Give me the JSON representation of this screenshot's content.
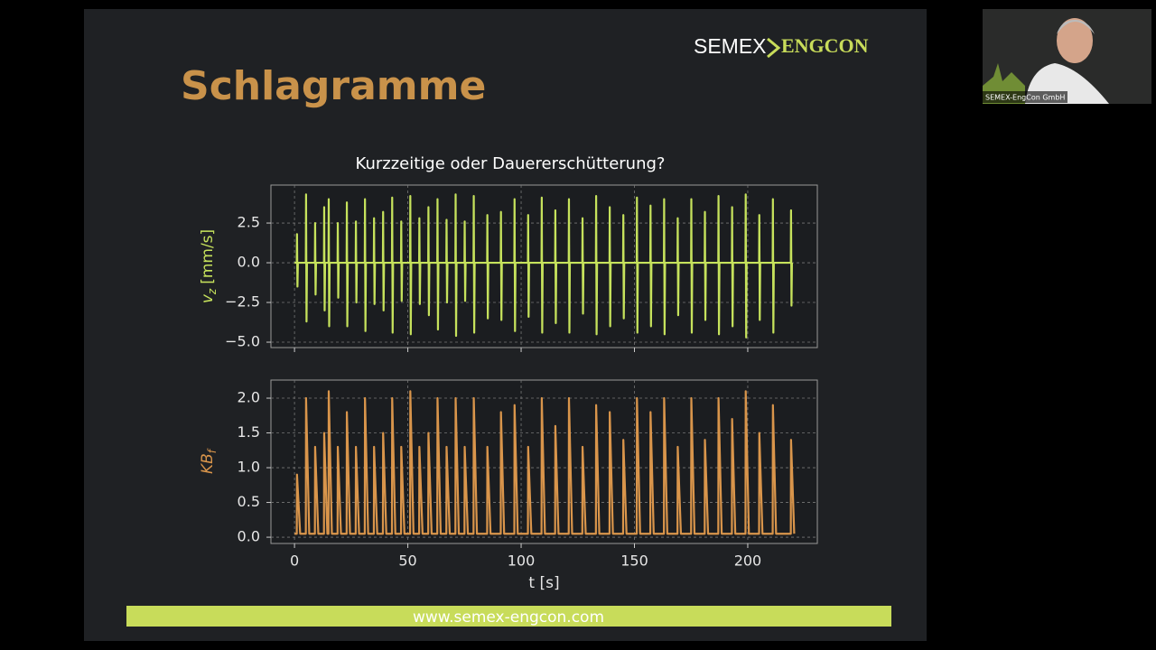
{
  "slide": {
    "title": "Schlagramme",
    "logo_left": "SEMEX",
    "logo_right": "ENGCON",
    "footer": "www.semex-engcon.com"
  },
  "video": {
    "caption": "SEMEX-EngCon GmbH"
  },
  "chart_data": [
    {
      "type": "line",
      "title": "Kurzzeitige oder Dauererschütterung?",
      "ylabel_symbol": "v",
      "ylabel_subscript": "z",
      "ylabel_unit": "[mm/s]",
      "xlim": [
        -10.4,
        230.7
      ],
      "xticks": [
        0,
        50,
        100,
        150,
        200
      ],
      "show_xtick_labels": false,
      "ylim": [
        -5.34,
        4.89
      ],
      "yticks": [
        {
          "value": -5,
          "label": "−5.0"
        },
        {
          "value": -2.5,
          "label": "−2.5"
        },
        {
          "value": 0,
          "label": "0.0"
        },
        {
          "value": 2.5,
          "label": "2.5"
        }
      ],
      "grid": true,
      "x": [
        0,
        1,
        1.1,
        1.3,
        1.5,
        5,
        5.1,
        5.3,
        5.5,
        9,
        9.1,
        9.3,
        9.5,
        13,
        13.1,
        13.3,
        13.5,
        15,
        15.1,
        15.3,
        15.5,
        19,
        19.1,
        19.3,
        19.5,
        23,
        23.1,
        23.3,
        23.5,
        27,
        27.1,
        27.3,
        27.5,
        31,
        31.1,
        31.3,
        31.5,
        35,
        35.1,
        35.3,
        35.5,
        39,
        39.1,
        39.3,
        39.5,
        43,
        43.1,
        43.3,
        43.5,
        47,
        47.1,
        47.3,
        47.5,
        51,
        51.1,
        51.3,
        51.5,
        55,
        55.1,
        55.3,
        55.5,
        59,
        59.1,
        59.3,
        59.5,
        63,
        63.1,
        63.3,
        63.5,
        67,
        67.1,
        67.3,
        67.5,
        71,
        71.1,
        71.3,
        71.5,
        75,
        75.1,
        75.3,
        75.5,
        79,
        79.1,
        79.3,
        79.5,
        85,
        85.1,
        85.3,
        85.5,
        91,
        91.1,
        91.3,
        91.5,
        97,
        97.1,
        97.3,
        97.5,
        103,
        103.1,
        103.3,
        103.5,
        109,
        109.1,
        109.3,
        109.5,
        115,
        115.1,
        115.3,
        115.5,
        121,
        121.1,
        121.3,
        121.5,
        127,
        127.1,
        127.3,
        127.5,
        133,
        133.1,
        133.3,
        133.5,
        139,
        139.1,
        139.3,
        139.5,
        145,
        145.1,
        145.3,
        145.5,
        151,
        151.1,
        151.3,
        151.5,
        157,
        157.1,
        157.3,
        157.5,
        163,
        163.1,
        163.3,
        163.5,
        169,
        169.1,
        169.3,
        169.5,
        175,
        175.1,
        175.3,
        175.5,
        181,
        181.1,
        181.3,
        181.5,
        187,
        187.1,
        187.3,
        187.5,
        193,
        193.1,
        193.3,
        193.5,
        199,
        199.1,
        199.3,
        199.5,
        205,
        205.1,
        205.3,
        205.5,
        211,
        211.1,
        211.3,
        211.5,
        219,
        219.1,
        219.3,
        219.5
      ],
      "series": [
        {
          "color": "#c6e25c",
          "values": [
            0,
            0,
            1.8,
            -1.5,
            0,
            0,
            4.3,
            -3.7,
            0,
            0,
            2.5,
            -2.0,
            0,
            0,
            3.5,
            -3.0,
            0,
            0,
            4.0,
            -4.0,
            0,
            0,
            2.5,
            -2.2,
            0,
            0,
            3.8,
            -4.0,
            0,
            0,
            2.6,
            -2.5,
            0,
            0,
            4.0,
            -4.3,
            0,
            0,
            2.8,
            -2.6,
            0,
            0,
            3.2,
            -3.0,
            0,
            0,
            4.1,
            -4.4,
            0,
            0,
            2.6,
            -2.4,
            0,
            0,
            4.2,
            -4.5,
            0,
            0,
            2.8,
            -2.6,
            0,
            0,
            3.5,
            -3.3,
            0,
            0,
            4.0,
            -4.2,
            0,
            0,
            2.7,
            -2.5,
            0,
            0,
            4.3,
            -4.6,
            0,
            0,
            2.6,
            -2.4,
            0,
            0,
            4.2,
            -4.4,
            0,
            0,
            3.0,
            -3.5,
            0,
            0,
            3.2,
            -3.6,
            0,
            0,
            4.0,
            -4.3,
            0,
            0,
            3.0,
            -3.4,
            0,
            0,
            4.1,
            -4.4,
            0,
            0,
            3.3,
            -3.8,
            0,
            0,
            4.0,
            -4.4,
            0,
            0,
            2.8,
            -3.2,
            0,
            0,
            4.2,
            -4.5,
            0,
            0,
            3.5,
            -4.0,
            0,
            0,
            3.0,
            -3.5,
            0,
            0,
            4.1,
            -4.4,
            0,
            0,
            3.6,
            -4.0,
            0,
            0,
            4.0,
            -4.5,
            0,
            0,
            2.8,
            -3.3,
            0,
            0,
            4.0,
            -4.4,
            0,
            0,
            3.2,
            -3.6,
            0,
            0,
            4.2,
            -4.5,
            0,
            0,
            3.5,
            -4.0,
            0,
            0,
            4.3,
            -4.7,
            0,
            0,
            3.0,
            -3.6,
            0,
            0,
            4.0,
            -4.4,
            0,
            0,
            3.3,
            -2.7,
            0
          ]
        }
      ]
    },
    {
      "type": "line",
      "ylabel_symbol": "KB",
      "ylabel_subscript": "f",
      "xlabel": "t [s]",
      "xlim": [
        -10.4,
        230.7
      ],
      "xticks": [
        0,
        50,
        100,
        150,
        200
      ],
      "show_xtick_labels": true,
      "ylim": [
        -0.09,
        2.26
      ],
      "yticks": [
        {
          "value": 0,
          "label": "0.0"
        },
        {
          "value": 0.5,
          "label": "0.5"
        },
        {
          "value": 1,
          "label": "1.0"
        },
        {
          "value": 1.5,
          "label": "1.5"
        },
        {
          "value": 2,
          "label": "2.0"
        }
      ],
      "grid": true,
      "x": [
        0,
        1,
        1.1,
        2.5,
        5,
        5.1,
        6.5,
        9,
        9.1,
        10.5,
        13,
        13.1,
        14.5,
        15,
        15.1,
        16.5,
        19,
        19.1,
        20.5,
        23,
        23.1,
        24.5,
        27,
        27.1,
        28.5,
        31,
        31.1,
        32.5,
        35,
        35.1,
        36.5,
        39,
        39.1,
        40.5,
        43,
        43.1,
        44.5,
        47,
        47.1,
        48.5,
        51,
        51.1,
        52.5,
        55,
        55.1,
        56.5,
        59,
        59.1,
        60.5,
        63,
        63.1,
        64.5,
        67,
        67.1,
        68.5,
        71,
        71.1,
        72.5,
        75,
        75.1,
        76.5,
        79,
        79.1,
        80.5,
        85,
        85.1,
        86.5,
        91,
        91.1,
        92.5,
        97,
        97.1,
        98.5,
        103,
        103.1,
        104.5,
        109,
        109.1,
        110.5,
        115,
        115.1,
        116.5,
        121,
        121.1,
        122.5,
        127,
        127.1,
        128.5,
        133,
        133.1,
        134.5,
        139,
        139.1,
        140.5,
        145,
        145.1,
        146.5,
        151,
        151.1,
        152.5,
        157,
        157.1,
        158.5,
        163,
        163.1,
        164.5,
        169,
        169.1,
        170.5,
        175,
        175.1,
        176.5,
        181,
        181.1,
        182.5,
        187,
        187.1,
        188.5,
        193,
        193.1,
        194.5,
        199,
        199.1,
        200.5,
        205,
        205.1,
        206.5,
        211,
        211.1,
        212.5,
        219,
        219.1,
        220.5
      ],
      "series": [
        {
          "color": "#d9954b",
          "values": [
            0.05,
            0.05,
            0.9,
            0.05,
            0.05,
            2.0,
            0.05,
            0.05,
            1.3,
            0.05,
            0.05,
            1.5,
            0.05,
            0.05,
            2.1,
            0.05,
            0.05,
            1.3,
            0.05,
            0.05,
            1.8,
            0.05,
            0.05,
            1.3,
            0.05,
            0.05,
            2.0,
            0.05,
            0.05,
            1.3,
            0.05,
            0.05,
            1.5,
            0.05,
            0.05,
            2.0,
            0.05,
            0.05,
            1.3,
            0.05,
            0.05,
            2.1,
            0.05,
            0.05,
            1.3,
            0.05,
            0.05,
            1.5,
            0.05,
            0.05,
            2.0,
            0.05,
            0.05,
            1.3,
            0.05,
            0.05,
            2.0,
            0.05,
            0.05,
            1.3,
            0.05,
            0.05,
            2.0,
            0.05,
            0.05,
            1.3,
            0.05,
            0.05,
            1.8,
            0.05,
            0.05,
            1.9,
            0.05,
            0.05,
            1.3,
            0.05,
            0.05,
            2.0,
            0.05,
            0.05,
            1.6,
            0.05,
            0.05,
            2.0,
            0.05,
            0.05,
            1.3,
            0.05,
            0.05,
            1.9,
            0.05,
            0.05,
            1.8,
            0.05,
            0.05,
            1.4,
            0.05,
            0.05,
            2.0,
            0.05,
            0.05,
            1.8,
            0.05,
            0.05,
            2.0,
            0.05,
            0.05,
            1.3,
            0.05,
            0.05,
            2.0,
            0.05,
            0.05,
            1.4,
            0.05,
            0.05,
            2.0,
            0.05,
            0.05,
            1.7,
            0.05,
            0.05,
            2.1,
            0.05,
            0.05,
            1.5,
            0.05,
            0.05,
            1.9,
            0.05,
            0.05,
            1.4,
            0.05
          ]
        }
      ]
    }
  ]
}
